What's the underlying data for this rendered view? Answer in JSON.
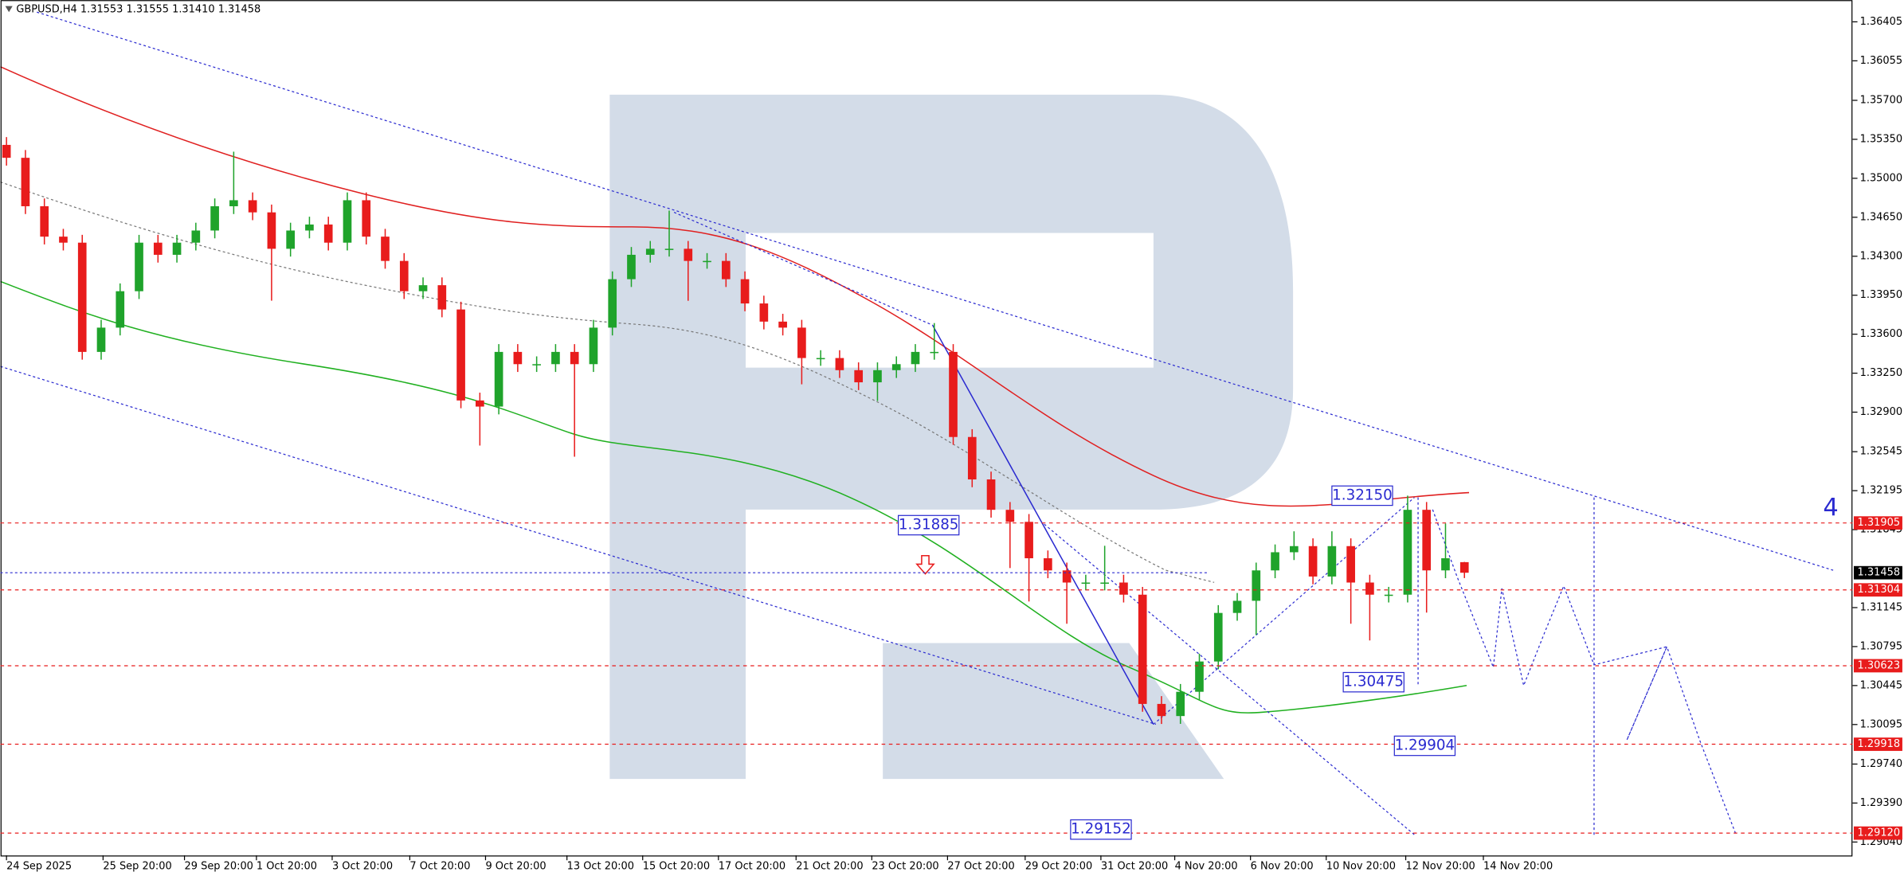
{
  "chart_data": {
    "type": "candlestick",
    "title": "GBPUSD,H4  1.31553 1.31555 1.31410 1.31458",
    "up_color": "#1fa32b",
    "down_color": "#e81c1c",
    "open": [
      1.353,
      1.35184,
      1.34749,
      1.34476,
      1.34422,
      1.33441,
      1.33659,
      1.33986,
      1.34422,
      1.34313,
      1.34422,
      1.34531,
      1.34749,
      1.34803,
      1.34694,
      1.34367,
      1.34531,
      1.34585,
      1.34422,
      1.34803,
      1.34476,
      1.34258,
      1.33986,
      1.3404,
      1.33822,
      1.33005,
      1.3295,
      1.33441,
      1.33331,
      1.33331,
      1.33441,
      1.33331,
      1.33659,
      1.34094,
      1.34313,
      1.34367,
      1.34367,
      1.34258,
      1.34258,
      1.34094,
      1.33876,
      1.33713,
      1.33659,
      1.33386,
      1.33386,
      1.33277,
      1.33168,
      1.33277,
      1.33331,
      1.33441,
      1.33441,
      1.32677,
      1.32296,
      1.32023,
      1.31915,
      1.31588,
      1.31479,
      1.3137,
      1.3137,
      1.3137,
      1.31261,
      1.3028,
      1.30171,
      1.30389,
      1.30661,
      1.31097,
      1.31206,
      1.31479,
      1.31642,
      1.31697,
      1.31424,
      1.31697,
      1.3137,
      1.31261,
      1.31261,
      1.32023,
      1.31479,
      1.31553
    ],
    "high": [
      1.3537,
      1.35254,
      1.34819,
      1.34546,
      1.34492,
      1.33729,
      1.34056,
      1.34492,
      1.34492,
      1.34492,
      1.34601,
      1.34819,
      1.35239,
      1.34873,
      1.34764,
      1.34601,
      1.34655,
      1.34655,
      1.34873,
      1.34873,
      1.34546,
      1.34328,
      1.3411,
      1.3411,
      1.33892,
      1.33075,
      1.33511,
      1.33511,
      1.33401,
      1.33511,
      1.33511,
      1.33729,
      1.34164,
      1.34383,
      1.34437,
      1.3471,
      1.34437,
      1.34328,
      1.34328,
      1.34164,
      1.33946,
      1.33783,
      1.33729,
      1.33456,
      1.33456,
      1.33347,
      1.33347,
      1.33401,
      1.33511,
      1.337,
      1.33511,
      1.32747,
      1.32366,
      1.32093,
      1.31985,
      1.31658,
      1.31549,
      1.3144,
      1.317,
      1.3144,
      1.31331,
      1.3035,
      1.30459,
      1.30731,
      1.31167,
      1.31276,
      1.31549,
      1.31712,
      1.3183,
      1.31767,
      1.3183,
      1.31767,
      1.3144,
      1.31331,
      1.3215,
      1.32093,
      1.319,
      1.31555
    ],
    "low": [
      1.35114,
      1.34679,
      1.34406,
      1.34352,
      1.33371,
      1.33371,
      1.33589,
      1.33916,
      1.34243,
      1.34243,
      1.34352,
      1.34461,
      1.34679,
      1.34624,
      1.33901,
      1.34297,
      1.34461,
      1.34352,
      1.34352,
      1.34406,
      1.34188,
      1.33916,
      1.33916,
      1.33752,
      1.32935,
      1.326,
      1.3288,
      1.33261,
      1.33261,
      1.33261,
      1.325,
      1.33261,
      1.33589,
      1.34024,
      1.34243,
      1.34297,
      1.339,
      1.34188,
      1.34024,
      1.33806,
      1.33643,
      1.33589,
      1.3315,
      1.33316,
      1.33207,
      1.33098,
      1.33,
      1.33207,
      1.33261,
      1.33371,
      1.32607,
      1.32226,
      1.31953,
      1.315,
      1.312,
      1.31409,
      1.31,
      1.313,
      1.313,
      1.31191,
      1.3021,
      1.301,
      1.30101,
      1.30319,
      1.30591,
      1.31027,
      1.309,
      1.31409,
      1.31572,
      1.31354,
      1.31354,
      1.31,
      1.3085,
      1.31191,
      1.31191,
      1.311,
      1.31409,
      1.3141
    ],
    "close": [
      1.35184,
      1.34749,
      1.34476,
      1.34422,
      1.33441,
      1.33659,
      1.33986,
      1.34422,
      1.34313,
      1.34422,
      1.34531,
      1.34749,
      1.34803,
      1.34694,
      1.34367,
      1.34531,
      1.34585,
      1.34422,
      1.34803,
      1.34476,
      1.34258,
      1.33986,
      1.3404,
      1.33822,
      1.33005,
      1.3295,
      1.33441,
      1.33331,
      1.33331,
      1.33441,
      1.33331,
      1.33659,
      1.34094,
      1.34313,
      1.34367,
      1.34367,
      1.34258,
      1.34258,
      1.34094,
      1.33876,
      1.33713,
      1.33659,
      1.33386,
      1.33386,
      1.33277,
      1.33168,
      1.33277,
      1.33331,
      1.33441,
      1.33441,
      1.32677,
      1.32296,
      1.32023,
      1.31915,
      1.31588,
      1.31479,
      1.3137,
      1.3137,
      1.3137,
      1.31261,
      1.3028,
      1.30171,
      1.30389,
      1.30661,
      1.31097,
      1.31206,
      1.31479,
      1.31642,
      1.31697,
      1.31424,
      1.31697,
      1.3137,
      1.31261,
      1.31261,
      1.32023,
      1.31479,
      1.31588,
      1.31458
    ],
    "ylim": [
      1.2892,
      1.36601
    ],
    "yticks": [
      1.36405,
      1.36055,
      {
        "value": 1.357,
        "label": "1.35700"
      },
      {
        "value": 1.3535,
        "label": "1.35350"
      },
      {
        "value": 1.35,
        "label": "1.35000"
      },
      {
        "value": 1.3465,
        "label": "1.34650"
      },
      {
        "value": 1.343,
        "label": "1.34300"
      },
      {
        "value": 1.3395,
        "label": "1.33950"
      },
      {
        "value": 1.336,
        "label": "1.33600"
      },
      {
        "value": 1.3325,
        "label": "1.33250"
      },
      {
        "value": 1.329,
        "label": "1.32900"
      },
      1.32545,
      1.32195,
      1.31845,
      1.31145,
      1.30795,
      1.30445,
      1.30095,
      {
        "value": 1.2974,
        "label": "1.29740"
      },
      {
        "value": 1.2939,
        "label": "1.29390"
      },
      {
        "value": 1.2904,
        "label": "1.29040"
      }
    ],
    "xticks": [
      {
        "value": 0,
        "label": "24 Sep 2025"
      },
      {
        "value": 5.1,
        "label": "25 Sep 20:00"
      },
      {
        "value": 9.4,
        "label": "29 Sep 20:00"
      },
      {
        "value": 13.2,
        "label": "1 Oct 20:00"
      },
      {
        "value": 17.2,
        "label": "3 Oct 20:00"
      },
      {
        "value": 21.3,
        "label": "7 Oct 20:00"
      },
      {
        "value": 25.3,
        "label": "9 Oct 20:00"
      },
      {
        "value": 29.6,
        "label": "13 Oct 20:00"
      },
      {
        "value": 33.6,
        "label": "15 Oct 20:00"
      },
      {
        "value": 37.6,
        "label": "17 Oct 20:00"
      },
      {
        "value": 41.7,
        "label": "21 Oct 20:00"
      },
      {
        "value": 45.7,
        "label": "23 Oct 20:00"
      },
      {
        "value": 49.7,
        "label": "27 Oct 20:00"
      },
      {
        "value": 53.8,
        "label": "29 Oct 20:00"
      },
      {
        "value": 57.8,
        "label": "31 Oct 20:00"
      },
      {
        "value": 61.7,
        "label": "4 Nov 20:00"
      },
      {
        "value": 65.7,
        "label": "6 Nov 20:00"
      },
      {
        "value": 69.7,
        "label": "10 Nov 20:00"
      },
      {
        "value": 73.9,
        "label": "12 Nov 20:00"
      },
      {
        "value": 78,
        "label": "14 Nov 20:00"
      }
    ],
    "levels": {
      "color": "#e81c1c",
      "values": [
        1.31905,
        1.31304,
        1.30623,
        1.29918,
        1.2912
      ],
      "value_labels": [
        "1.31905",
        "1.31304",
        "1.30623",
        "1.29918",
        "1.29120"
      ]
    },
    "current_price": {
      "value": 1.31458,
      "label": "1.31458"
    },
    "annotations": {
      "x": [
        70,
        47.1,
        70.6,
        73.3,
        56.2
      ],
      "values": [
        1.3215,
        1.31885,
        1.30475,
        1.29904,
        1.29152
      ],
      "value_labels": [
        "1.32150",
        "1.31885",
        "1.30475",
        "1.29904",
        "1.29152"
      ]
    },
    "wave_label": "4"
  }
}
